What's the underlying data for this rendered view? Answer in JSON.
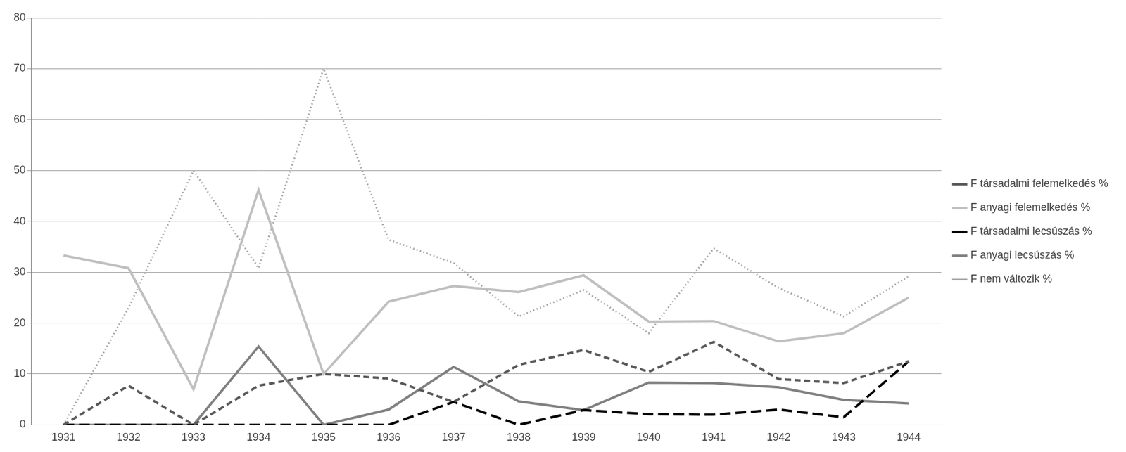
{
  "chart_data": {
    "type": "line",
    "categories": [
      "1931",
      "1932",
      "1933",
      "1934",
      "1935",
      "1936",
      "1937",
      "1938",
      "1939",
      "1940",
      "1941",
      "1942",
      "1943",
      "1944"
    ],
    "ylim": [
      0,
      80
    ],
    "yticks": [
      0,
      10,
      20,
      30,
      40,
      50,
      60,
      70,
      80
    ],
    "grid": true,
    "legend": "right",
    "series": [
      {
        "name": "F társadalmi felemelkedés %",
        "color": "#595959",
        "line_style": "dashed",
        "values": [
          0,
          7.7,
          0,
          7.7,
          10,
          9.1,
          4.5,
          11.8,
          14.7,
          10.4,
          16.3,
          9,
          8.2,
          12.5
        ]
      },
      {
        "name": "F anyagi felemelkedés %",
        "color": "#bfbfbf",
        "line_style": "solid",
        "values": [
          33.3,
          30.8,
          7,
          46.2,
          10,
          24.2,
          27.3,
          26.1,
          29.4,
          20.3,
          20.4,
          16.4,
          18,
          25
        ]
      },
      {
        "name": "F társadalmi lecsúszás %",
        "color": "#000000",
        "line_style": "long_dashed",
        "values": [
          0,
          0,
          0,
          0,
          0,
          0,
          4.5,
          0,
          2.9,
          2.1,
          2,
          3,
          1.5,
          12.5
        ]
      },
      {
        "name": "F anyagi lecsúszás %",
        "color": "#808080",
        "line_style": "solid",
        "values": [
          0,
          0,
          0,
          15.4,
          0,
          3,
          11.4,
          4.6,
          2.9,
          8.3,
          8.2,
          7.4,
          4.9,
          4.2
        ]
      },
      {
        "name": "F nem változik %",
        "color": "#a6a6a6",
        "line_style": "dotted",
        "values": [
          0,
          23,
          50,
          30.8,
          70,
          36.4,
          31.8,
          21.3,
          26.5,
          18,
          34.7,
          26.9,
          21.3,
          29.2
        ]
      }
    ]
  }
}
